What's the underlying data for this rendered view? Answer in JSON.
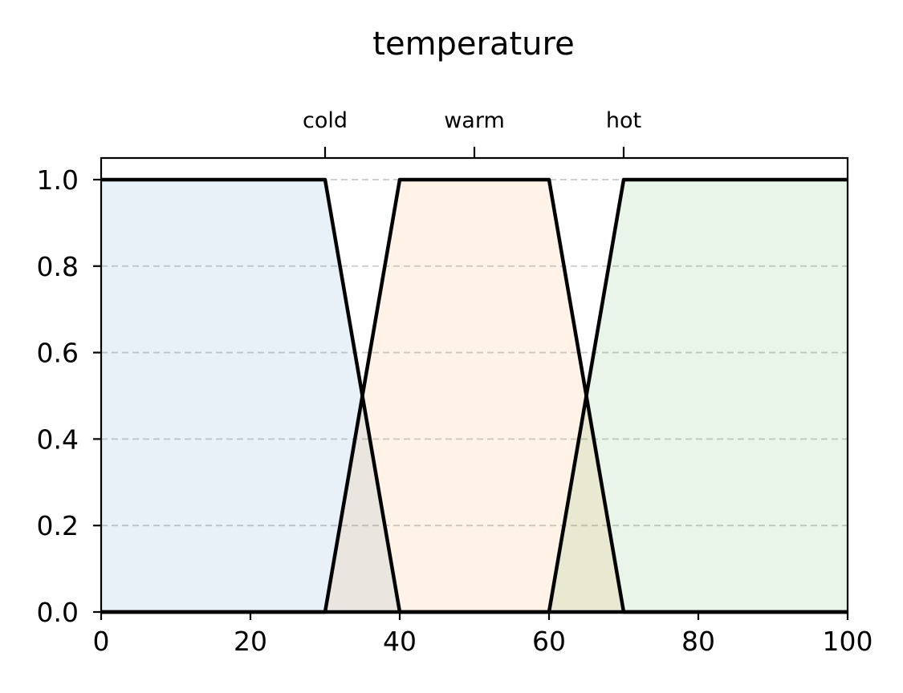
{
  "chart_data": {
    "type": "area",
    "title": "temperature",
    "xlim": [
      0,
      100
    ],
    "ylim": [
      0,
      1.05
    ],
    "x_ticks": [
      0,
      20,
      40,
      60,
      80,
      100
    ],
    "y_ticks": [
      0.0,
      0.2,
      0.4,
      0.6,
      0.8,
      1.0
    ],
    "x_tick_labels": [
      "0",
      "20",
      "40",
      "60",
      "80",
      "100"
    ],
    "y_tick_labels": [
      "0.0",
      "0.2",
      "0.4",
      "0.6",
      "0.8",
      "1.0"
    ],
    "top_ticks": [
      {
        "label": "cold",
        "value": 30
      },
      {
        "label": "warm",
        "value": 50
      },
      {
        "label": "hot",
        "value": 70
      }
    ],
    "grid": "y-dashed",
    "series": [
      {
        "name": "cold",
        "color": "#1f77b4",
        "x": [
          0,
          30,
          40,
          100
        ],
        "y": [
          1,
          1,
          0,
          0
        ]
      },
      {
        "name": "warm",
        "color": "#ff7f0e",
        "x": [
          0,
          30,
          40,
          60,
          70,
          100
        ],
        "y": [
          0,
          0,
          1,
          1,
          0,
          0
        ]
      },
      {
        "name": "hot",
        "color": "#2ca02c",
        "x": [
          0,
          60,
          70,
          100
        ],
        "y": [
          0,
          0,
          1,
          1
        ]
      }
    ]
  }
}
